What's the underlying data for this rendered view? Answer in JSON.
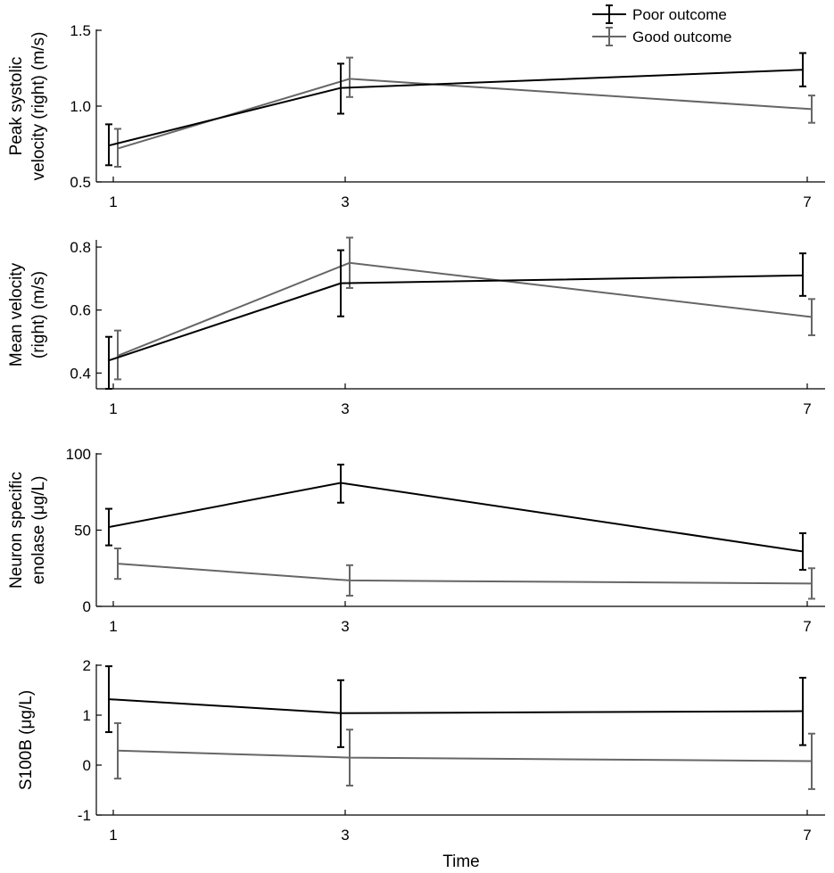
{
  "colors": {
    "poor": "#000000",
    "good": "#666666"
  },
  "legend": {
    "poor_label": "Poor outcome",
    "good_label": "Good outcome",
    "placement": "top-right"
  },
  "x_axis_label": "Time",
  "chart_data": [
    {
      "type": "line",
      "ylabel_lines": [
        "Peak systolic",
        "velocity (right) (m/s)"
      ],
      "x": [
        1,
        3,
        7
      ],
      "xticks": [
        "1",
        "3",
        "7"
      ],
      "ylim": [
        0.5,
        1.5
      ],
      "yticks": [
        0.5,
        1.0,
        1.5
      ],
      "ytick_labels": [
        "0.5",
        "1.0",
        "1.5"
      ],
      "series": [
        {
          "name": "Poor outcome",
          "values": [
            0.74,
            1.12,
            1.24
          ],
          "lower": [
            0.61,
            0.95,
            1.13
          ],
          "upper": [
            0.88,
            1.28,
            1.35
          ]
        },
        {
          "name": "Good outcome",
          "values": [
            0.72,
            1.18,
            0.98
          ],
          "lower": [
            0.6,
            1.06,
            0.89
          ],
          "upper": [
            0.85,
            1.32,
            1.07
          ]
        }
      ]
    },
    {
      "type": "line",
      "ylabel_lines": [
        "Mean velocity",
        "(right) (m/s)"
      ],
      "x": [
        1,
        3,
        7
      ],
      "xticks": [
        "1",
        "3",
        "7"
      ],
      "ylim": [
        0.35,
        0.82
      ],
      "yticks": [
        0.4,
        0.6,
        0.8
      ],
      "ytick_labels": [
        "0.4",
        "0.6",
        "0.8"
      ],
      "series": [
        {
          "name": "Poor outcome",
          "values": [
            0.44,
            0.685,
            0.71
          ],
          "lower": [
            0.35,
            0.58,
            0.645
          ],
          "upper": [
            0.515,
            0.79,
            0.78
          ]
        },
        {
          "name": "Good outcome",
          "values": [
            0.455,
            0.75,
            0.578
          ],
          "lower": [
            0.38,
            0.67,
            0.52
          ],
          "upper": [
            0.535,
            0.83,
            0.635
          ]
        }
      ]
    },
    {
      "type": "line",
      "ylabel_lines": [
        "Neuron specific",
        "enolase (μg/L)"
      ],
      "x": [
        1,
        3,
        7
      ],
      "xticks": [
        "1",
        "3",
        "7"
      ],
      "ylim": [
        0,
        100
      ],
      "yticks": [
        0,
        50,
        100
      ],
      "ytick_labels": [
        "0",
        "50",
        "100"
      ],
      "series": [
        {
          "name": "Poor outcome",
          "values": [
            52,
            81,
            36
          ],
          "lower": [
            40,
            68,
            24
          ],
          "upper": [
            64,
            93,
            48
          ]
        },
        {
          "name": "Good outcome",
          "values": [
            28,
            17,
            15
          ],
          "lower": [
            18,
            7,
            5
          ],
          "upper": [
            38,
            27,
            25
          ]
        }
      ]
    },
    {
      "type": "line",
      "ylabel_lines": [
        "S100B (μg/L)"
      ],
      "x": [
        1,
        3,
        7
      ],
      "xticks": [
        "1",
        "3",
        "7"
      ],
      "ylim": [
        -1,
        2
      ],
      "yticks": [
        -1,
        0,
        1,
        2
      ],
      "ytick_labels": [
        "-1",
        "0",
        "1",
        "2"
      ],
      "series": [
        {
          "name": "Poor outcome",
          "values": [
            1.32,
            1.04,
            1.08
          ],
          "lower": [
            0.66,
            0.36,
            0.4
          ],
          "upper": [
            1.98,
            1.7,
            1.75
          ]
        },
        {
          "name": "Good outcome",
          "values": [
            0.29,
            0.15,
            0.08
          ],
          "lower": [
            -0.27,
            -0.41,
            -0.48
          ],
          "upper": [
            0.84,
            0.71,
            0.63
          ]
        }
      ]
    }
  ]
}
